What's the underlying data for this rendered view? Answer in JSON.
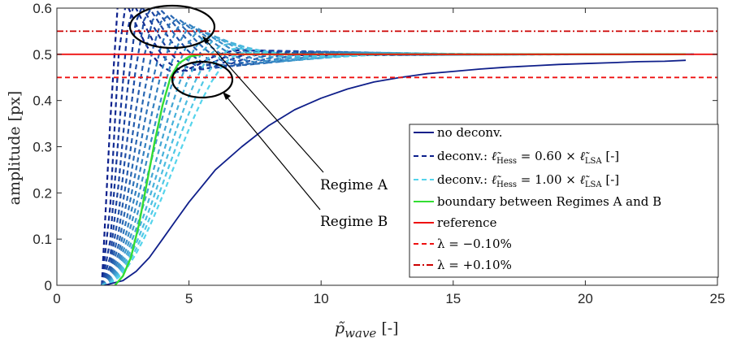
{
  "chart_data": {
    "type": "line",
    "xlabel": "p̃_wave [-]",
    "ylabel": "amplitude [px]",
    "xlim": [
      0,
      25
    ],
    "ylim": [
      0,
      0.6
    ],
    "x_ticks": [
      "0",
      "5",
      "10",
      "15",
      "20",
      "25"
    ],
    "y_ticks": [
      "0",
      "0.1",
      "0.2",
      "0.3",
      "0.4",
      "0.5",
      "0.6"
    ],
    "grid": false,
    "legend_position": "bottom-right",
    "series": [
      {
        "name": "no deconv.",
        "style": "solid",
        "color": "#0f1f8a",
        "x": [
          1.8,
          2.5,
          3,
          3.5,
          4,
          4.5,
          5,
          5.5,
          6,
          7,
          8,
          9,
          10,
          11,
          12,
          13,
          14,
          15,
          16,
          17,
          18,
          19,
          20,
          21,
          22,
          23,
          23.8
        ],
        "y": [
          0.0,
          0.01,
          0.03,
          0.06,
          0.1,
          0.14,
          0.18,
          0.215,
          0.25,
          0.3,
          0.345,
          0.38,
          0.405,
          0.425,
          0.44,
          0.45,
          0.458,
          0.463,
          0.468,
          0.472,
          0.475,
          0.478,
          0.48,
          0.482,
          0.484,
          0.485,
          0.487
        ]
      },
      {
        "name": "deconv.: ℓ̃_Hess = 0.60 × ℓ̃_LSA [-]",
        "style": "dashed",
        "color": "#0c1f8c"
      },
      {
        "name": "deconv.: ℓ̃_Hess = 1.00 × ℓ̃_LSA [-]",
        "style": "dashed",
        "color": "#55d4ec"
      },
      {
        "name": "boundary between Regimes A and B",
        "style": "solid",
        "color": "#33dd33",
        "x": [
          2.2,
          2.5,
          2.8,
          3.1,
          3.4,
          3.7,
          4.0,
          4.3,
          4.6,
          5.0,
          5.5,
          6.0,
          7.0,
          8.0,
          10.0,
          15.0,
          20.0,
          23.8
        ],
        "y": [
          0.0,
          0.02,
          0.06,
          0.13,
          0.22,
          0.31,
          0.39,
          0.45,
          0.48,
          0.495,
          0.5,
          0.5,
          0.5,
          0.5,
          0.5,
          0.5,
          0.5,
          0.5
        ]
      },
      {
        "name": "reference",
        "style": "solid",
        "color": "#ee1111",
        "x": [
          0,
          25
        ],
        "y": [
          0.5,
          0.5
        ]
      },
      {
        "name": "λ = −0.10%",
        "style": "dashed",
        "color": "#ee1111",
        "x": [
          0,
          25
        ],
        "y": [
          0.45,
          0.45
        ]
      },
      {
        "name": "λ = +0.10%",
        "style": "dash-dot",
        "color": "#cc0000",
        "x": [
          0,
          25
        ],
        "y": [
          0.55,
          0.55
        ]
      }
    ],
    "annotations": [
      "Regime A",
      "Regime B"
    ]
  },
  "legend": {
    "items": [
      {
        "label": "no deconv."
      },
      {
        "pre": "deconv.: ",
        "sym1": "ℓ̃",
        "sub1": "Hess",
        "mid": " = 0.60 × ",
        "sym2": "ℓ̃",
        "sub2": "LSA",
        "post": "  [-]"
      },
      {
        "pre": "deconv.: ",
        "sym1": "ℓ̃",
        "sub1": "Hess",
        "mid": " = 1.00 × ",
        "sym2": "ℓ̃",
        "sub2": "LSA",
        "post": "  [-]"
      },
      {
        "label": "boundary between Regimes A and B"
      },
      {
        "label": "reference"
      },
      {
        "label": "λ = −0.10%"
      },
      {
        "label": "λ = +0.10%"
      }
    ]
  },
  "axes": {
    "xtitle_main": "p̃",
    "xtitle_sub": "wave",
    "xtitle_unit": " [-]",
    "ytitle": "amplitude [px]"
  },
  "annotations": {
    "a": "Regime A",
    "b": "Regime B"
  }
}
